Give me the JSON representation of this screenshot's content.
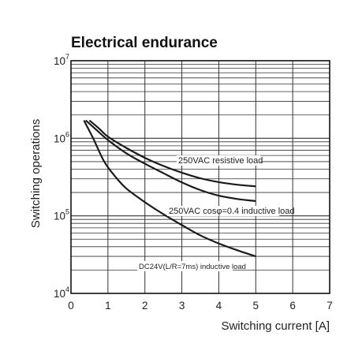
{
  "chart_data": {
    "type": "line",
    "title": "Electrical endurance",
    "xlabel": "Switching current [A]",
    "ylabel": "Switching operations",
    "xlim": [
      0,
      7
    ],
    "ylim": [
      10000,
      10000000
    ],
    "yscale": "log",
    "grid": true,
    "x_ticks": [
      "0",
      "1",
      "2",
      "3",
      "4",
      "5",
      "6",
      "7"
    ],
    "y_ticks": [
      {
        "base": "10",
        "exp": "4",
        "value": 10000
      },
      {
        "base": "10",
        "exp": "5",
        "value": 100000
      },
      {
        "base": "10",
        "exp": "6",
        "value": 1000000
      },
      {
        "base": "10",
        "exp": "7",
        "value": 10000000
      }
    ],
    "series": [
      {
        "name": "250VAC resistive load",
        "color": "#1a1a1a",
        "points": [
          [
            0.5,
            1700000
          ],
          [
            0.75,
            1350000
          ],
          [
            1,
            1050000
          ],
          [
            1.5,
            750000
          ],
          [
            2,
            560000
          ],
          [
            2.5,
            440000
          ],
          [
            3,
            360000
          ],
          [
            3.5,
            305000
          ],
          [
            4,
            272000
          ],
          [
            4.5,
            252000
          ],
          [
            5,
            240000
          ]
        ]
      },
      {
        "name": "250VAC cosφ=0.4 inductive load",
        "color": "#1a1a1a",
        "points": [
          [
            0.4,
            1700000
          ],
          [
            0.6,
            1400000
          ],
          [
            1,
            950000
          ],
          [
            1.5,
            640000
          ],
          [
            2,
            470000
          ],
          [
            2.5,
            355000
          ],
          [
            3,
            270000
          ],
          [
            3.5,
            215000
          ],
          [
            4,
            182000
          ],
          [
            4.5,
            165000
          ],
          [
            5,
            155000
          ]
        ]
      },
      {
        "name": "DC24V(L/R=7ms) inductive load",
        "color": "#1a1a1a",
        "points": [
          [
            0.35,
            1700000
          ],
          [
            0.6,
            1000000
          ],
          [
            0.9,
            500000
          ],
          [
            1.2,
            320000
          ],
          [
            1.5,
            225000
          ],
          [
            2,
            150000
          ],
          [
            2.5,
            105000
          ],
          [
            3,
            76000
          ],
          [
            3.5,
            56000
          ],
          [
            4,
            44000
          ],
          [
            4.5,
            36000
          ],
          [
            5,
            30000
          ]
        ]
      }
    ],
    "annotations": [
      {
        "text": "250VAC resistive load",
        "series": 0
      },
      {
        "text": "250VAC cosφ=0.4 inductive load",
        "series": 1
      },
      {
        "text": "DC24V(L/R=7ms) inductive load",
        "series": 2
      }
    ]
  }
}
